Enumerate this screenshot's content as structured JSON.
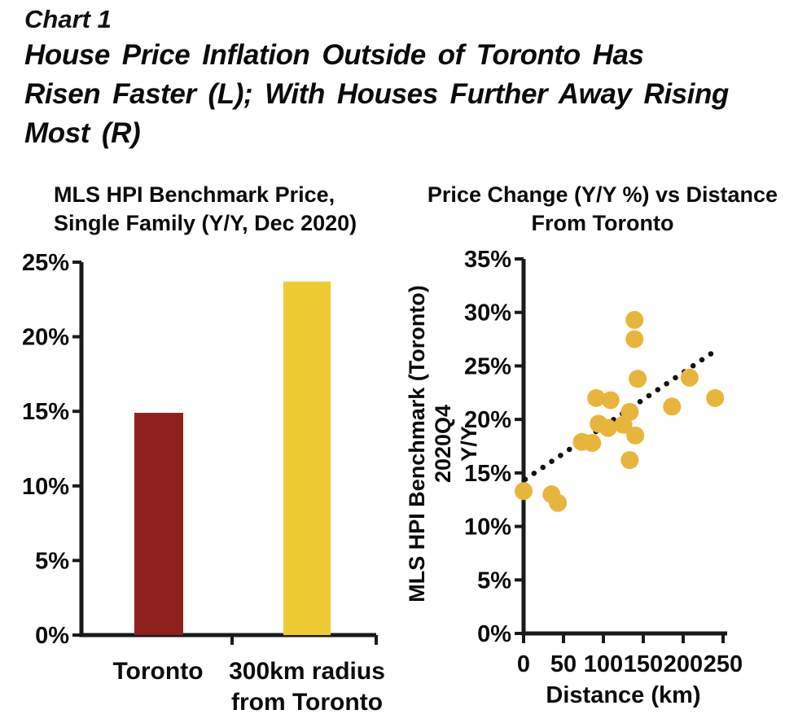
{
  "page": {
    "chart_label": "Chart 1",
    "heading": "House Price Inflation Outside of Toronto Has\nRisen Faster (L); With Houses Further Away Rising\nMost (R)"
  },
  "colors": {
    "text": "#0b0b0b",
    "axis": "#1a1a1a",
    "bar_toronto_red": "#8E2120",
    "bar_radius_yellow": "#EFCB33",
    "scatter_point_yellow": "#E8B53C",
    "trend_line_black": "#111111"
  },
  "chart_data": [
    {
      "type": "bar",
      "title": "MLS HPI Benchmark Price,\nSingle Family (Y/Y, Dec 2020)",
      "categories": [
        "Toronto",
        "300km radius\nfrom Toronto"
      ],
      "values": [
        14.9,
        23.7
      ],
      "bar_colors": [
        "#8E2120",
        "#EFCB33"
      ],
      "xlabel": "",
      "ylabel": "",
      "ylim": [
        0,
        25
      ],
      "ytick_step": 5,
      "ytick_suffix": "%",
      "grid": false,
      "legend": false
    },
    {
      "type": "scatter",
      "title": "Price Change (Y/Y %) vs Distance\nFrom Toronto",
      "ylabel": "MLS HPI Benchmark (Toronto) 2020Q4\nY/Y",
      "xlabel": "Distance (km)",
      "xlim": [
        0,
        250
      ],
      "ylim": [
        0,
        35
      ],
      "xticks": [
        0,
        50,
        100,
        150,
        200,
        250
      ],
      "ytick_step": 5,
      "ytick_suffix": "%",
      "grid": false,
      "legend": false,
      "point_color": "#E8B53C",
      "points": [
        [
          0,
          13.3
        ],
        [
          35,
          13.0
        ],
        [
          43,
          12.2
        ],
        [
          73,
          17.9
        ],
        [
          86,
          17.8
        ],
        [
          91,
          22.0
        ],
        [
          109,
          21.8
        ],
        [
          94,
          19.6
        ],
        [
          106,
          19.2
        ],
        [
          125,
          19.5
        ],
        [
          133,
          20.7
        ],
        [
          140,
          18.5
        ],
        [
          133,
          16.2
        ],
        [
          139,
          29.3
        ],
        [
          139,
          27.5
        ],
        [
          143,
          23.8
        ],
        [
          186,
          21.2
        ],
        [
          208,
          23.9
        ],
        [
          240,
          22.0
        ]
      ],
      "trendline": {
        "style": "dotted",
        "from": [
          2,
          14.4
        ],
        "to": [
          236,
          26.2
        ]
      }
    }
  ]
}
